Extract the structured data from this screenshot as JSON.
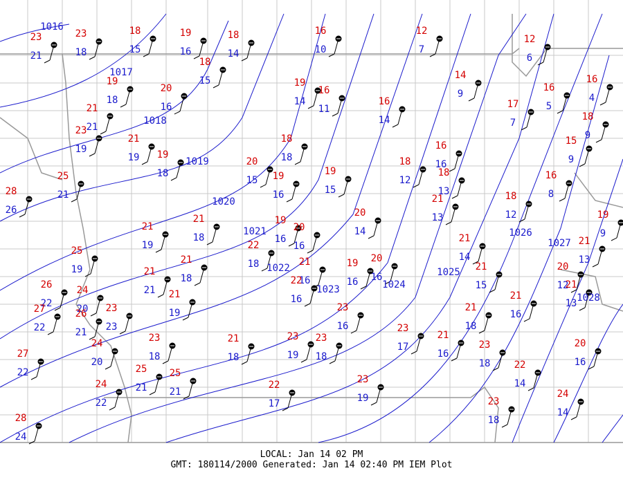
{
  "stations": [
    [
      23,
      21
    ],
    [
      23,
      18
    ],
    [
      18,
      15
    ],
    [
      19,
      16
    ],
    [
      18,
      14
    ],
    [
      16,
      10
    ],
    [
      12,
      7
    ],
    [
      12,
      6
    ],
    [
      14,
      9
    ],
    [
      18,
      15
    ],
    [
      19,
      18
    ],
    [
      20,
      16
    ],
    [
      19,
      14
    ],
    [
      16,
      11
    ],
    [
      16,
      14
    ],
    [
      16,
      5
    ],
    [
      16,
      4
    ],
    [
      17,
      7
    ],
    [
      21,
      21
    ],
    [
      23,
      19
    ],
    [
      21,
      19
    ],
    [
      19,
      18
    ],
    [
      18,
      18
    ],
    [
      20,
      15
    ],
    [
      19,
      16
    ],
    [
      19,
      15
    ],
    [
      18,
      12
    ],
    [
      16,
      16
    ],
    [
      18,
      13
    ],
    [
      21,
      13
    ],
    [
      18,
      9
    ],
    [
      15,
      9
    ],
    [
      16,
      8
    ],
    [
      18,
      12
    ],
    [
      25,
      21
    ],
    [
      28,
      26
    ],
    [
      21,
      19
    ],
    [
      21,
      18
    ],
    [
      20,
      14
    ],
    [
      19,
      16
    ],
    [
      20,
      16
    ],
    [
      22,
      18
    ],
    [
      25,
      19
    ],
    [
      21,
      21
    ],
    [
      21,
      18
    ],
    [
      21,
      16
    ],
    [
      22,
      16
    ],
    [
      19,
      16
    ],
    [
      20,
      16
    ],
    [
      21,
      14
    ],
    [
      21,
      15
    ],
    [
      19,
      9
    ],
    [
      21,
      13
    ],
    [
      20,
      12
    ],
    [
      21,
      13
    ],
    [
      21,
      16
    ],
    [
      26,
      22
    ],
    [
      24,
      20
    ],
    [
      27,
      22
    ],
    [
      26,
      21
    ],
    [
      23,
      23
    ],
    [
      21,
      19
    ],
    [
      23,
      16
    ],
    [
      21,
      18
    ],
    [
      24,
      20
    ],
    [
      23,
      18
    ],
    [
      21,
      18
    ],
    [
      23,
      19
    ],
    [
      23,
      18
    ],
    [
      23,
      17
    ],
    [
      21,
      16
    ],
    [
      23,
      18
    ],
    [
      20,
      16
    ],
    [
      27,
      22
    ],
    [
      25,
      21
    ],
    [
      25,
      21
    ],
    [
      22,
      14
    ],
    [
      24,
      22
    ],
    [
      22,
      17
    ],
    [
      23,
      19
    ],
    [
      24,
      14
    ],
    [
      23,
      18
    ],
    [
      28,
      24
    ]
  ],
  "isobars": [
    1016,
    1017,
    1018,
    1019,
    1020,
    1021,
    1022,
    1023,
    1024,
    1025,
    1026,
    1027,
    1028
  ],
  "footer": {
    "local": "LOCAL: Jan 14 02 PM",
    "generated": "GMT: 180114/2000 Generated: Jan 14 02:40 PM IEM Plot"
  }
}
